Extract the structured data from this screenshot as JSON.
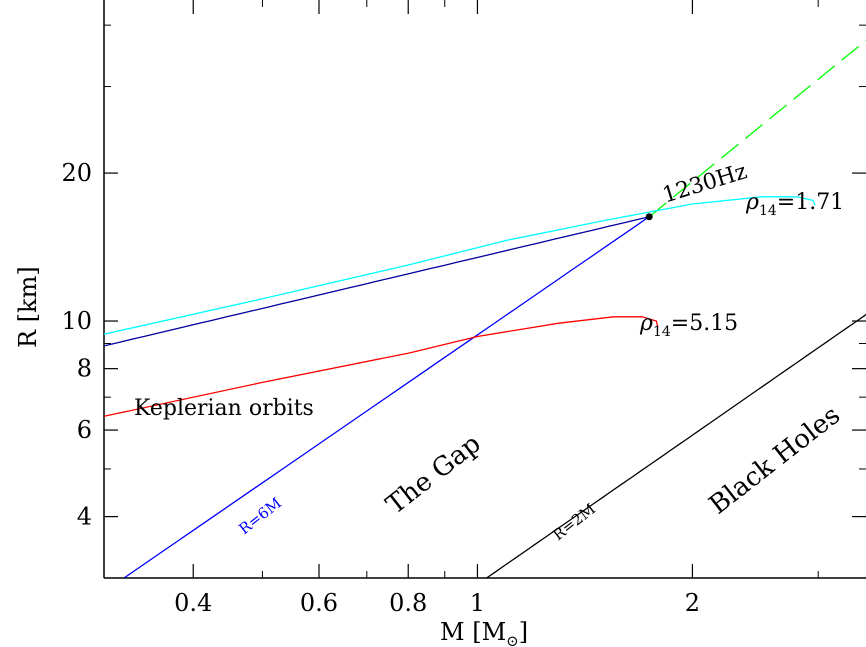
{
  "chart_data": {
    "type": "line",
    "xscale": "log",
    "yscale": "log",
    "xlim": [
      0.3,
      3.5
    ],
    "ylim": [
      3,
      45
    ],
    "xlabel": "M [M",
    "xlabel_sub": "⊙",
    "xlabel_close": "]",
    "ylabel": "R [km]",
    "x_tick_labels": [
      "0.4",
      "0.6",
      "0.8",
      "1",
      "2"
    ],
    "x_tick_values": [
      0.4,
      0.6,
      0.8,
      1,
      2
    ],
    "y_tick_labels": [
      "4",
      "6",
      "8",
      "10",
      "20"
    ],
    "y_tick_values": [
      4,
      6,
      8,
      10,
      20
    ],
    "x_minor_ticks": [
      0.3,
      0.5,
      0.7,
      0.9,
      3
    ],
    "y_minor_ticks": [
      3,
      5,
      7,
      9,
      30,
      40
    ],
    "colors": {
      "isco": "#0000ff",
      "schwarzschild": "#000000",
      "rho171": "#00ffff",
      "rho515": "#ff0000",
      "orbit_1230": "#0000a0",
      "extension": "#00ff00"
    },
    "series": [
      {
        "key": "schwarzschild",
        "style": "solid",
        "points": [
          [
            1.03,
            3.0
          ],
          [
            3.6,
            10.6
          ]
        ]
      },
      {
        "key": "isco",
        "style": "solid",
        "points": [
          [
            0.32,
            3.0
          ],
          [
            1.74,
            16.3
          ]
        ]
      },
      {
        "key": "orbit_1230",
        "style": "solid",
        "points": [
          [
            0.3,
            8.9
          ],
          [
            1.74,
            16.3
          ]
        ]
      },
      {
        "key": "extension",
        "style": "dashed",
        "points": [
          [
            1.74,
            16.3
          ],
          [
            3.6,
            38.5
          ]
        ]
      },
      {
        "key": "rho171",
        "style": "solid",
        "points": [
          [
            0.3,
            9.4
          ],
          [
            0.5,
            11.1
          ],
          [
            0.8,
            13.0
          ],
          [
            1.1,
            14.6
          ],
          [
            1.5,
            16.0
          ],
          [
            2.0,
            17.3
          ],
          [
            2.5,
            17.9
          ],
          [
            2.8,
            17.9
          ],
          [
            2.95,
            17.6
          ],
          [
            2.97,
            17.2
          ]
        ]
      },
      {
        "key": "rho515",
        "style": "solid",
        "points": [
          [
            0.3,
            6.4
          ],
          [
            0.5,
            7.5
          ],
          [
            0.8,
            8.6
          ],
          [
            1.0,
            9.3
          ],
          [
            1.3,
            9.9
          ],
          [
            1.55,
            10.2
          ],
          [
            1.7,
            10.2
          ],
          [
            1.78,
            10.0
          ],
          [
            1.79,
            9.7
          ]
        ]
      }
    ],
    "marker": {
      "x": 1.74,
      "y": 16.3,
      "label": "1230Hz"
    },
    "annotations": {
      "rho171_label": {
        "text": "ρ",
        "sub": "14",
        "value": "=1.71"
      },
      "rho515_label": {
        "text": "ρ",
        "sub": "14",
        "value": "=5.15"
      },
      "isco_label": "R=6M",
      "schwarzschild_label": "R=2M",
      "keplerian": "Keplerian orbits",
      "gap": "The Gap",
      "black_holes": "Black Holes"
    }
  }
}
